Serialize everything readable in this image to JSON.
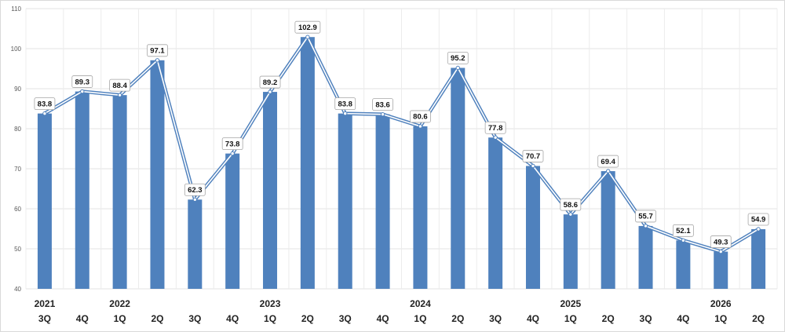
{
  "chart_data": {
    "type": "bar",
    "ylim": [
      40,
      110
    ],
    "yticks": [
      40,
      50,
      60,
      70,
      80,
      90,
      100,
      110
    ],
    "grid": true,
    "legend": "none",
    "categories": [
      {
        "year": "2021",
        "quarter": "3Q"
      },
      {
        "year": "",
        "quarter": "4Q"
      },
      {
        "year": "2022",
        "quarter": "1Q"
      },
      {
        "year": "",
        "quarter": "2Q"
      },
      {
        "year": "",
        "quarter": "3Q"
      },
      {
        "year": "",
        "quarter": "4Q"
      },
      {
        "year": "2023",
        "quarter": "1Q"
      },
      {
        "year": "",
        "quarter": "2Q"
      },
      {
        "year": "",
        "quarter": "3Q"
      },
      {
        "year": "",
        "quarter": "4Q"
      },
      {
        "year": "2024",
        "quarter": "1Q"
      },
      {
        "year": "",
        "quarter": "2Q"
      },
      {
        "year": "",
        "quarter": "3Q"
      },
      {
        "year": "",
        "quarter": "4Q"
      },
      {
        "year": "2025",
        "quarter": "1Q"
      },
      {
        "year": "",
        "quarter": "2Q"
      },
      {
        "year": "",
        "quarter": "3Q"
      },
      {
        "year": "",
        "quarter": "4Q"
      },
      {
        "year": "2026",
        "quarter": "1Q"
      },
      {
        "year": "",
        "quarter": "2Q"
      }
    ],
    "values": [
      83.8,
      89.3,
      88.4,
      97.1,
      62.3,
      73.8,
      89.2,
      102.9,
      83.8,
      83.6,
      80.6,
      95.2,
      77.8,
      70.7,
      58.6,
      69.4,
      55.7,
      52.1,
      49.3,
      54.9
    ],
    "labels": [
      "83.8",
      "89.3",
      "88.4",
      "97.1",
      "62.3",
      "73.8",
      "89.2",
      "102.9",
      "83.8",
      "83.6",
      "80.6",
      "95.2",
      "77.8",
      "70.7",
      "58.6",
      "69.4",
      "55.7",
      "52.1",
      "49.3",
      "54.9"
    ],
    "bar_color": "#4f81bd",
    "line_color": "#4f81bd",
    "line_inner_color": "#ffffff"
  }
}
